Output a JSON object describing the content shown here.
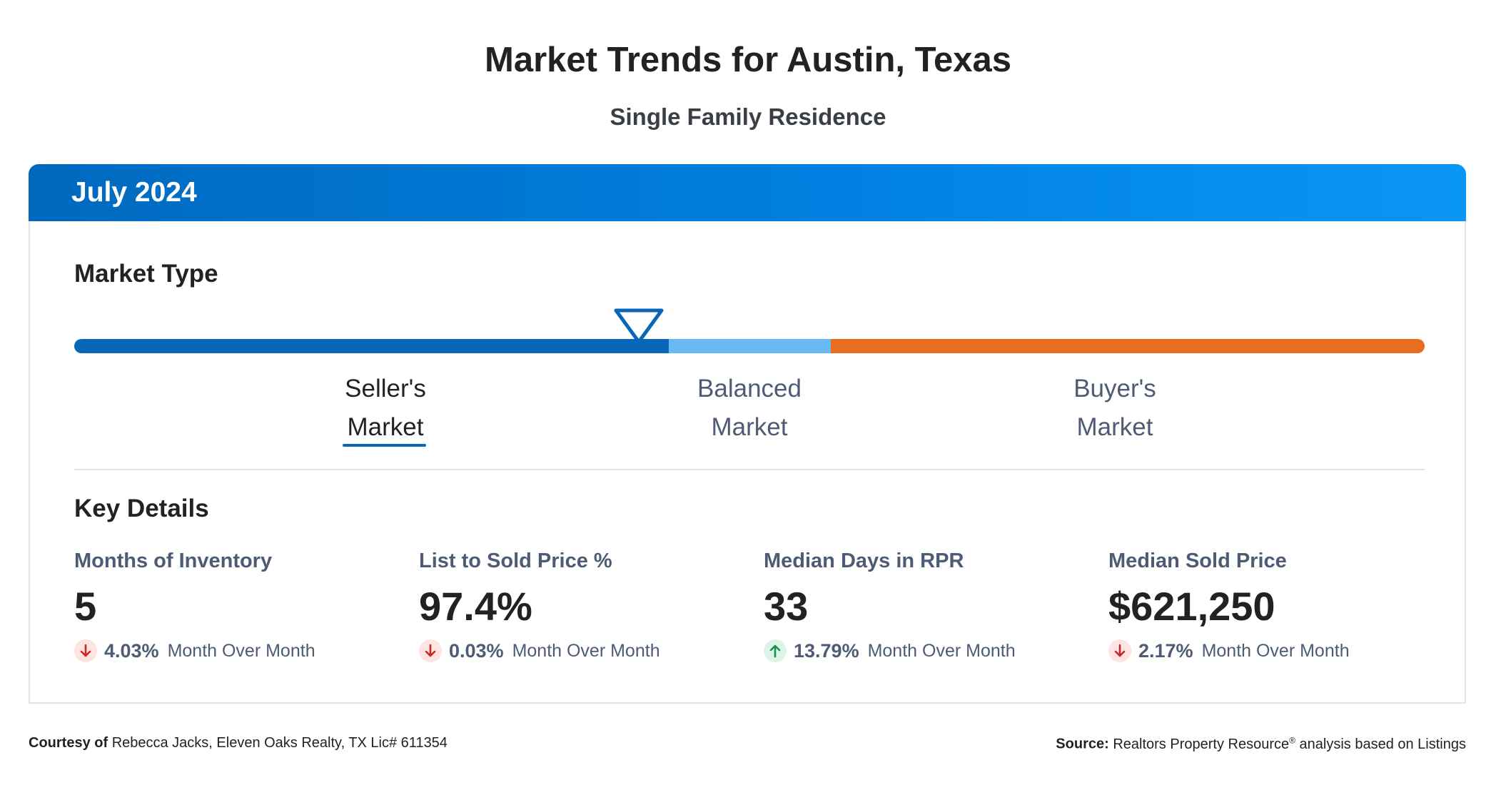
{
  "header": {
    "title": "Market Trends for Austin, Texas",
    "subtitle": "Single Family Residence"
  },
  "card": {
    "period": "July 2024",
    "market_type": {
      "title": "Market Type",
      "labels": [
        {
          "line1": "Seller's",
          "line2": "Market"
        },
        {
          "line1": "Balanced",
          "line2": "Market"
        },
        {
          "line1": "Buyer's",
          "line2": "Market"
        }
      ],
      "active": "Seller's Market",
      "indicator_position_fraction": 0.418,
      "colors": {
        "seller": "#0a66b8",
        "balanced": "#69b9f5",
        "buyer": "#e86d21"
      }
    },
    "key_details": {
      "title": "Key Details",
      "metrics": [
        {
          "label": "Months of Inventory",
          "value": "5",
          "change": "4.03%",
          "direction": "down",
          "period_text": "Month Over Month"
        },
        {
          "label": "List to Sold Price %",
          "value": "97.4%",
          "change": "0.03%",
          "direction": "down",
          "period_text": "Month Over Month"
        },
        {
          "label": "Median Days in RPR",
          "value": "33",
          "change": "13.79%",
          "direction": "up",
          "period_text": "Month Over Month"
        },
        {
          "label": "Median Sold Price",
          "value": "$621,250",
          "change": "2.17%",
          "direction": "down",
          "period_text": "Month Over Month"
        }
      ]
    }
  },
  "footer": {
    "courtesy_label": "Courtesy of",
    "courtesy_text": "Rebecca Jacks, Eleven Oaks Realty, TX Lic# 611354",
    "source_label": "Source:",
    "source_text_1": "Realtors Property Resource",
    "source_sup": "®",
    "source_text_2": " analysis based on Listings"
  },
  "icons": {
    "down": "arrow-down-icon",
    "up": "arrow-up-icon",
    "pointer": "triangle-pointer-icon"
  }
}
